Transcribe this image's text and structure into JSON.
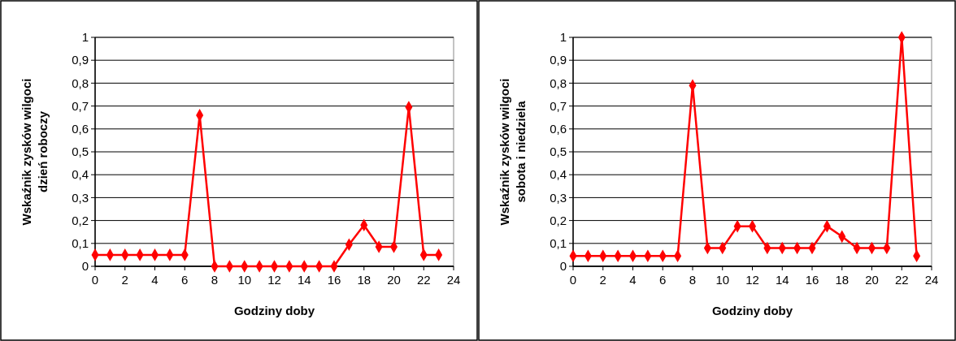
{
  "chart_data": [
    {
      "type": "line",
      "xlabel": "Godziny doby",
      "ylabel": "Wskaźnik zysków wilgoci\ndzień roboczy",
      "x": [
        0,
        1,
        2,
        3,
        4,
        5,
        6,
        7,
        8,
        9,
        10,
        11,
        12,
        13,
        14,
        15,
        16,
        17,
        18,
        19,
        20,
        21,
        22,
        23
      ],
      "series": [
        {
          "color": "#ff0000",
          "values": [
            0.05,
            0.05,
            0.05,
            0.05,
            0.05,
            0.05,
            0.05,
            0.66,
            0,
            0,
            0,
            0,
            0,
            0,
            0,
            0,
            0,
            0.095,
            0.18,
            0.085,
            0.085,
            0.695,
            0.05,
            0.05
          ]
        }
      ],
      "xlim": [
        0,
        24
      ],
      "xticks": [
        {
          "value": 0,
          "label": "0"
        },
        2,
        4,
        6,
        8,
        10,
        12,
        14,
        16,
        18,
        20,
        22,
        24
      ],
      "ylim": [
        0,
        1
      ],
      "yticks": [
        {
          "value": 0,
          "label": "0"
        },
        {
          "value": 0.1,
          "label": "0,1"
        },
        {
          "value": 0.2,
          "label": "0,2"
        },
        {
          "value": 0.3,
          "label": "0,3"
        },
        {
          "value": 0.4,
          "label": "0,4"
        },
        {
          "value": 0.5,
          "label": "0,5"
        },
        {
          "value": 0.6,
          "label": "0,6"
        },
        {
          "value": 0.7,
          "label": "0,7"
        },
        {
          "value": 0.8,
          "label": "0,8"
        },
        {
          "value": 0.9,
          "label": "0,9"
        },
        1
      ],
      "grid": "y",
      "marker": "diamond",
      "line_style": "solid"
    },
    {
      "type": "line",
      "xlabel": "Godziny doby",
      "ylabel": "Wskaźnik zysków wilgoci\nsobota i niedziela",
      "x": [
        0,
        1,
        2,
        3,
        4,
        5,
        6,
        7,
        8,
        9,
        10,
        11,
        12,
        13,
        14,
        15,
        16,
        17,
        18,
        19,
        20,
        21,
        22,
        23
      ],
      "series": [
        {
          "color": "#ff0000",
          "values": [
            0.045,
            0.045,
            0.045,
            0.045,
            0.045,
            0.045,
            0.045,
            0.045,
            0.79,
            0.08,
            0.08,
            0.175,
            0.175,
            0.08,
            0.08,
            0.08,
            0.08,
            0.175,
            0.13,
            0.08,
            0.08,
            0.08,
            1,
            0.045
          ]
        }
      ],
      "xlim": [
        0,
        24
      ],
      "xticks": [
        {
          "value": 0,
          "label": "0"
        },
        2,
        4,
        6,
        8,
        10,
        12,
        14,
        16,
        18,
        20,
        22,
        24
      ],
      "ylim": [
        0,
        1
      ],
      "yticks": [
        {
          "value": 0,
          "label": "0"
        },
        {
          "value": 0.1,
          "label": "0,1"
        },
        {
          "value": 0.2,
          "label": "0,2"
        },
        {
          "value": 0.3,
          "label": "0,3"
        },
        {
          "value": 0.4,
          "label": "0,4"
        },
        {
          "value": 0.5,
          "label": "0,5"
        },
        {
          "value": 0.6,
          "label": "0,6"
        },
        {
          "value": 0.7,
          "label": "0,7"
        },
        {
          "value": 0.8,
          "label": "0,8"
        },
        {
          "value": 0.9,
          "label": "0,9"
        },
        1
      ],
      "grid": "y",
      "marker": "diamond",
      "line_style": "solid"
    }
  ]
}
